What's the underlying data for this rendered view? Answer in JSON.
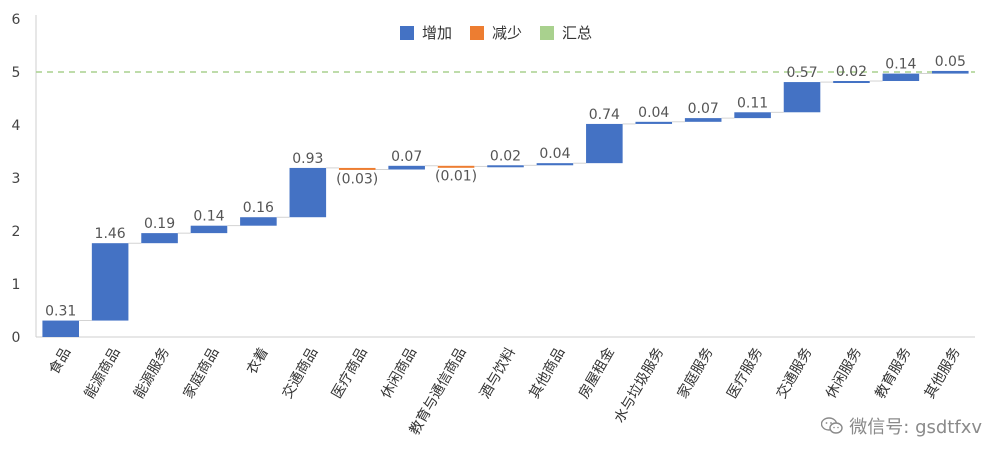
{
  "legend": {
    "increase": {
      "label": "增加",
      "color": "#4472C4"
    },
    "decrease": {
      "label": "减少",
      "color": "#ED7D31"
    },
    "total": {
      "label": "汇总",
      "color": "#A9D18E"
    }
  },
  "watermark": {
    "text": "微信号: gsdtfxv",
    "icon": "wechat-icon"
  },
  "chart_data": {
    "type": "bar",
    "subtype": "waterfall",
    "title": "",
    "xlabel": "",
    "ylabel": "",
    "ylim": [
      0,
      6
    ],
    "yticks": [
      "0",
      "1",
      "2",
      "3",
      "4",
      "5",
      "6"
    ],
    "grid": false,
    "legend_position": "top-center",
    "reference_line": {
      "y": 5,
      "style": "dashed",
      "color": "#A9D18E"
    },
    "categories": [
      "食品",
      "能源商品",
      "能源服务",
      "家庭商品",
      "衣着",
      "交通商品",
      "医疗商品",
      "休闲商品",
      "教育与通信商品",
      "酒与饮料",
      "其他商品",
      "房屋租金",
      "水与垃圾服务",
      "家庭服务",
      "医疗服务",
      "交通服务",
      "休闲服务",
      "教育服务",
      "其他服务"
    ],
    "values": [
      0.31,
      1.46,
      0.19,
      0.14,
      0.16,
      0.93,
      -0.03,
      0.07,
      -0.01,
      0.02,
      0.04,
      0.74,
      0.04,
      0.07,
      0.11,
      0.57,
      0.02,
      0.14,
      0.05
    ],
    "labels": [
      "0.31",
      "1.46",
      "0.19",
      "0.14",
      "0.16",
      "0.93",
      "(0.03)",
      "0.07",
      "(0.01)",
      "0.02",
      "0.04",
      "0.74",
      "0.04",
      "0.07",
      "0.11",
      "0.57",
      "0.02",
      "0.14",
      "0.05"
    ]
  }
}
